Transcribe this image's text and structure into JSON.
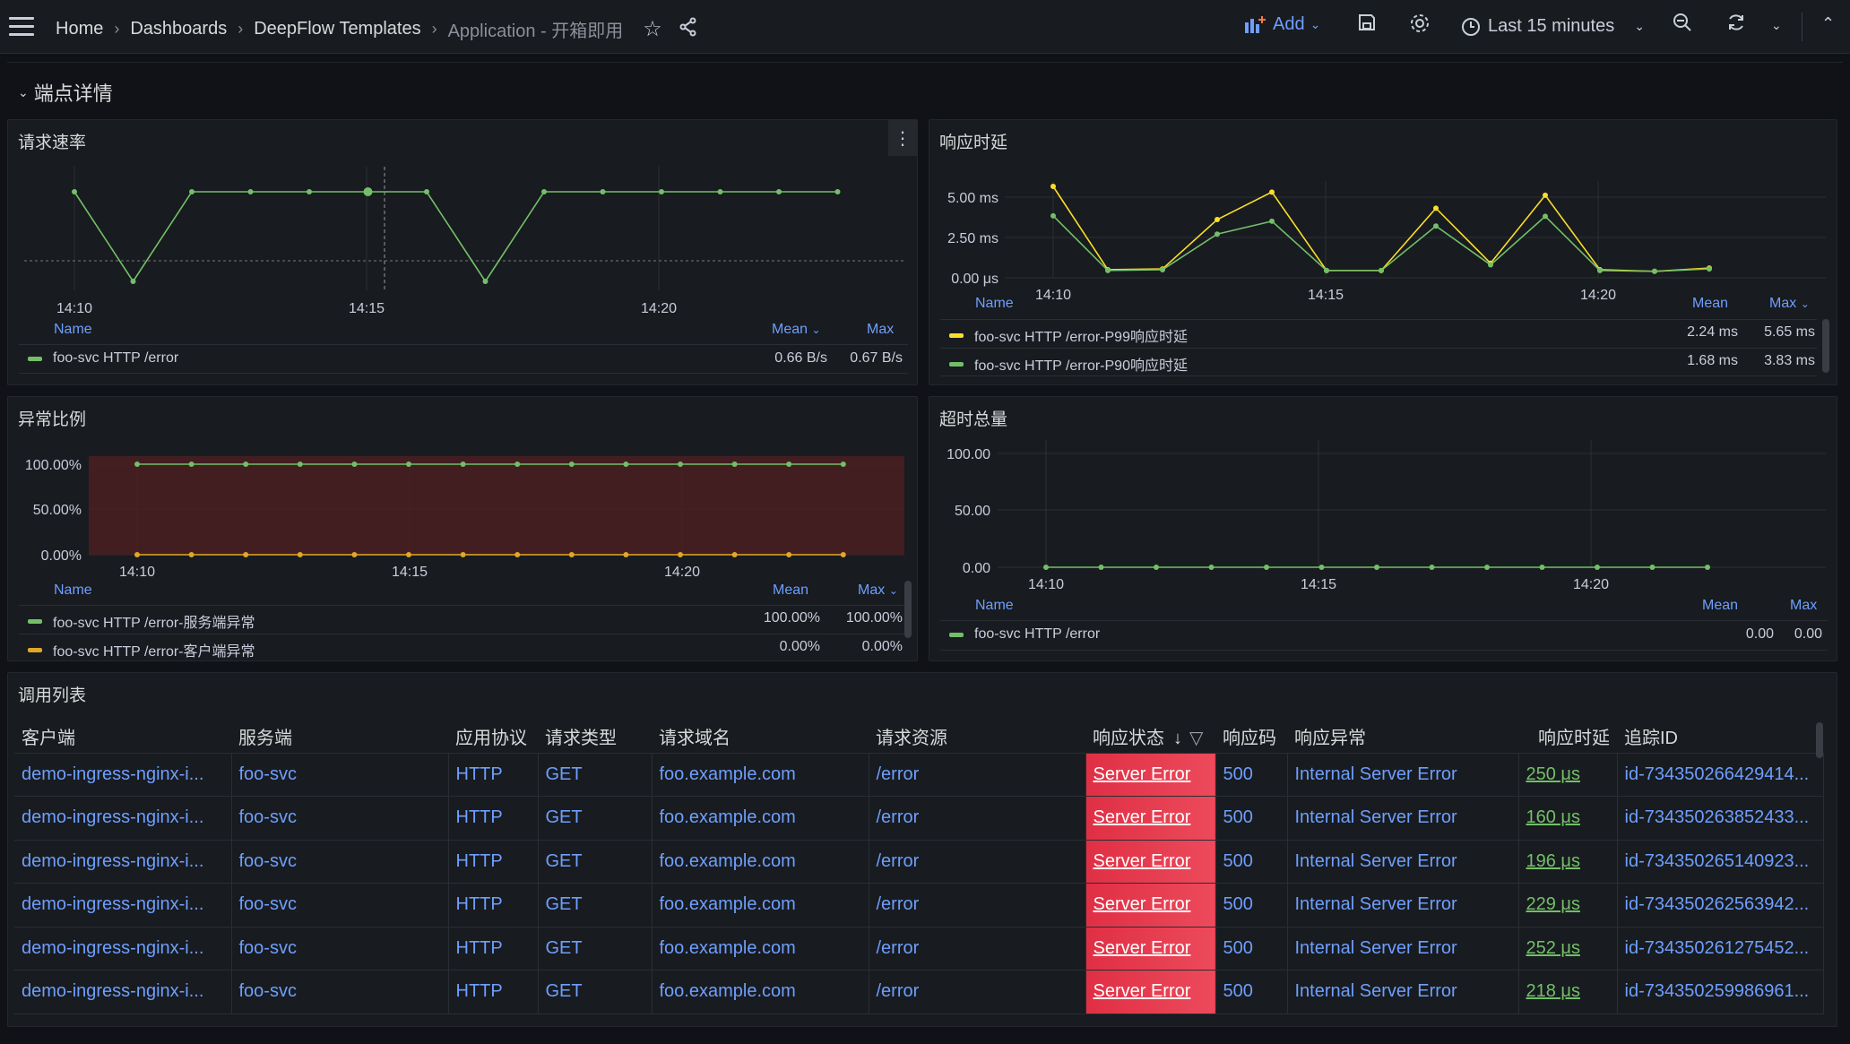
{
  "breadcrumb": [
    "Home",
    "Dashboards",
    "DeepFlow Templates",
    "Application - 开箱即用"
  ],
  "toolbar": {
    "add_label": "Add",
    "time_range": "Last 15 minutes"
  },
  "row": {
    "title": "端点详情"
  },
  "panels": {
    "request_rate": {
      "title": "请求速率",
      "x_ticks": [
        "14:10",
        "14:15",
        "14:20"
      ],
      "legend_cols": [
        "Name",
        "Mean",
        "Max"
      ],
      "legend_sort_icon": "chevron-down-icon",
      "rows": [
        {
          "name": "foo-svc HTTP /error",
          "mean": "0.66 B/s",
          "max": "0.67 B/s",
          "color": "#73bf69"
        }
      ]
    },
    "latency": {
      "title": "响应时延",
      "y_ticks": [
        "5.00 ms",
        "2.50 ms",
        "0.00 μs"
      ],
      "x_ticks": [
        "14:10",
        "14:15",
        "14:20"
      ],
      "legend_cols": [
        "Name",
        "Mean",
        "Max"
      ],
      "rows": [
        {
          "name": "foo-svc HTTP /error-P99响应时延",
          "mean": "2.24 ms",
          "max": "5.65 ms",
          "color": "#fade2a"
        },
        {
          "name": "foo-svc HTTP /error-P90响应时延",
          "mean": "1.68 ms",
          "max": "3.83 ms",
          "color": "#73bf69"
        }
      ]
    },
    "error_ratio": {
      "title": "异常比例",
      "y_ticks": [
        "100.00%",
        "50.00%",
        "0.00%"
      ],
      "x_ticks": [
        "14:10",
        "14:15",
        "14:20"
      ],
      "legend_cols": [
        "Name",
        "Mean",
        "Max"
      ],
      "rows": [
        {
          "name": "foo-svc HTTP /error-服务端异常",
          "mean": "100.00%",
          "max": "100.00%",
          "color": "#73bf69"
        },
        {
          "name": "foo-svc HTTP /error-客户端异常",
          "mean": "0.00%",
          "max": "0.00%",
          "color": "#e0a826"
        }
      ]
    },
    "timeout_total": {
      "title": "超时总量",
      "y_ticks": [
        "100.00",
        "50.00",
        "0.00"
      ],
      "x_ticks": [
        "14:10",
        "14:15",
        "14:20"
      ],
      "legend_cols": [
        "Name",
        "Mean",
        "Max"
      ],
      "rows": [
        {
          "name": "foo-svc HTTP /error",
          "mean": "0.00",
          "max": "0.00",
          "color": "#73bf69"
        }
      ]
    },
    "call_list": {
      "title": "调用列表",
      "columns": [
        "客户端",
        "服务端",
        "应用协议",
        "请求类型",
        "请求域名",
        "请求资源",
        "响应状态",
        "响应码",
        "响应异常",
        "响应时延",
        "追踪ID"
      ],
      "rows": [
        [
          "demo-ingress-nginx-i...",
          "foo-svc",
          "HTTP",
          "GET",
          "foo.example.com",
          "/error",
          "Server Error",
          "500",
          "Internal Server Error",
          "250 μs",
          "id-734350266429414..."
        ],
        [
          "demo-ingress-nginx-i...",
          "foo-svc",
          "HTTP",
          "GET",
          "foo.example.com",
          "/error",
          "Server Error",
          "500",
          "Internal Server Error",
          "160 μs",
          "id-734350263852433..."
        ],
        [
          "demo-ingress-nginx-i...",
          "foo-svc",
          "HTTP",
          "GET",
          "foo.example.com",
          "/error",
          "Server Error",
          "500",
          "Internal Server Error",
          "196 μs",
          "id-734350265140923..."
        ],
        [
          "demo-ingress-nginx-i...",
          "foo-svc",
          "HTTP",
          "GET",
          "foo.example.com",
          "/error",
          "Server Error",
          "500",
          "Internal Server Error",
          "229 μs",
          "id-734350262563942..."
        ],
        [
          "demo-ingress-nginx-i...",
          "foo-svc",
          "HTTP",
          "GET",
          "foo.example.com",
          "/error",
          "Server Error",
          "500",
          "Internal Server Error",
          "252 μs",
          "id-734350261275452..."
        ],
        [
          "demo-ingress-nginx-i...",
          "foo-svc",
          "HTTP",
          "GET",
          "foo.example.com",
          "/error",
          "Server Error",
          "500",
          "Internal Server Error",
          "218 μs",
          "id-734350259986961..."
        ]
      ]
    }
  },
  "chart_data": [
    {
      "type": "line",
      "x": [
        "14:09",
        "14:10",
        "14:11",
        "14:12",
        "14:13",
        "14:14",
        "14:15",
        "14:16",
        "14:17",
        "14:18",
        "14:19",
        "14:20",
        "14:21",
        "14:22"
      ],
      "series": [
        {
          "name": "foo-svc HTTP /error",
          "values": [
            0.67,
            0.64,
            0.67,
            0.67,
            0.67,
            0.67,
            0.67,
            0.64,
            0.67,
            0.67,
            0.67,
            0.67,
            0.67,
            0.67
          ]
        }
      ],
      "y_unit": "B/s"
    },
    {
      "type": "line",
      "x": [
        "14:09",
        "14:10",
        "14:11",
        "14:12",
        "14:13",
        "14:14",
        "14:15",
        "14:16",
        "14:17",
        "14:18",
        "14:19",
        "14:20",
        "14:21",
        "14:22"
      ],
      "series": [
        {
          "name": "foo-svc HTTP /error-P99响应时延",
          "values": [
            5.65,
            0.5,
            0.55,
            3.6,
            5.3,
            0.45,
            0.45,
            4.3,
            0.9,
            5.1,
            0.5,
            0.4,
            0.6,
            null
          ]
        },
        {
          "name": "foo-svc HTTP /error-P90响应时延",
          "values": [
            3.83,
            0.45,
            0.5,
            2.7,
            3.5,
            0.45,
            0.45,
            3.2,
            0.8,
            3.8,
            0.45,
            0.4,
            0.55,
            null
          ]
        }
      ],
      "ylim": [
        0,
        5.65
      ],
      "y_unit": "ms"
    },
    {
      "type": "line",
      "x": [
        "14:09",
        "14:10",
        "14:11",
        "14:12",
        "14:13",
        "14:14",
        "14:15",
        "14:16",
        "14:17",
        "14:18",
        "14:19",
        "14:20",
        "14:21",
        "14:22"
      ],
      "series": [
        {
          "name": "foo-svc HTTP /error-服务端异常",
          "values": [
            100,
            100,
            100,
            100,
            100,
            100,
            100,
            100,
            100,
            100,
            100,
            100,
            100,
            100
          ]
        },
        {
          "name": "foo-svc HTTP /error-客户端异常",
          "values": [
            0,
            0,
            0,
            0,
            0,
            0,
            0,
            0,
            0,
            0,
            0,
            0,
            0,
            0
          ]
        }
      ],
      "ylim": [
        0,
        100
      ],
      "y_unit": "%"
    },
    {
      "type": "line",
      "x": [
        "14:10",
        "14:11",
        "14:12",
        "14:13",
        "14:14",
        "14:15",
        "14:16",
        "14:17",
        "14:18",
        "14:19",
        "14:20",
        "14:21",
        "14:22"
      ],
      "series": [
        {
          "name": "foo-svc HTTP /error",
          "values": [
            0,
            0,
            0,
            0,
            0,
            0,
            0,
            0,
            0,
            0,
            0,
            0,
            0
          ]
        }
      ],
      "ylim": [
        0,
        100
      ]
    }
  ]
}
